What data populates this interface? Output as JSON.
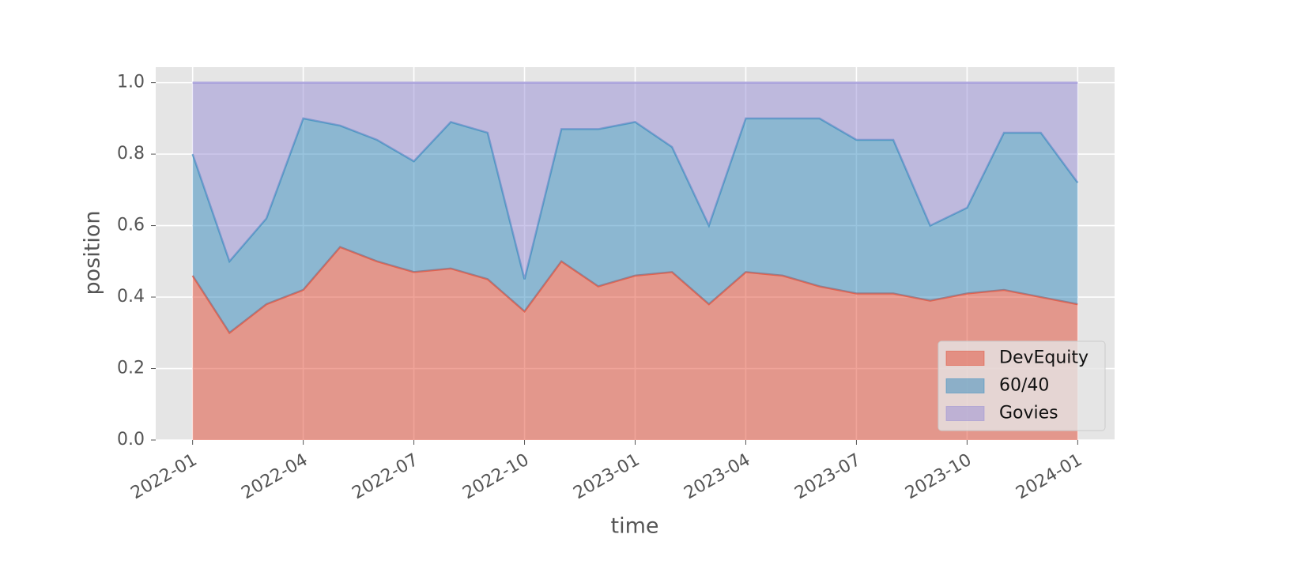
{
  "chart_data": {
    "type": "stacked_area",
    "x_label": "time",
    "y_label": "position",
    "x": [
      "2022-01",
      "2022-02",
      "2022-03",
      "2022-04",
      "2022-05",
      "2022-06",
      "2022-07",
      "2022-08",
      "2022-09",
      "2022-10",
      "2022-11",
      "2022-12",
      "2023-01",
      "2023-02",
      "2023-03",
      "2023-04",
      "2023-05",
      "2023-06",
      "2023-07",
      "2023-08",
      "2023-09",
      "2023-10",
      "2023-11",
      "2023-12",
      "2024-01"
    ],
    "series": [
      {
        "name": "DevEquity",
        "color": "#e24a33",
        "values": [
          0.46,
          0.3,
          0.38,
          0.42,
          0.54,
          0.5,
          0.47,
          0.48,
          0.45,
          0.36,
          0.5,
          0.43,
          0.46,
          0.47,
          0.38,
          0.47,
          0.46,
          0.43,
          0.41,
          0.41,
          0.39,
          0.41,
          0.42,
          0.4,
          0.38
        ]
      },
      {
        "name": "60/40",
        "color": "#348abd",
        "values": [
          0.34,
          0.2,
          0.24,
          0.48,
          0.34,
          0.34,
          0.31,
          0.41,
          0.41,
          0.09,
          0.37,
          0.44,
          0.43,
          0.35,
          0.22,
          0.43,
          0.44,
          0.47,
          0.43,
          0.43,
          0.21,
          0.24,
          0.44,
          0.46,
          0.34
        ]
      },
      {
        "name": "Govies",
        "color": "#988ed5",
        "values": [
          0.2,
          0.5,
          0.38,
          0.1,
          0.12,
          0.16,
          0.22,
          0.11,
          0.14,
          0.55,
          0.13,
          0.13,
          0.11,
          0.18,
          0.4,
          0.1,
          0.1,
          0.1,
          0.16,
          0.16,
          0.4,
          0.35,
          0.14,
          0.14,
          0.28
        ]
      }
    ],
    "xlim": [
      "2021-12",
      "2024-02"
    ],
    "xticks": [
      "2022-01",
      "2022-04",
      "2022-07",
      "2022-10",
      "2023-01",
      "2023-04",
      "2023-07",
      "2023-10",
      "2024-01"
    ],
    "ylim": [
      0,
      1.05
    ],
    "yticks": [
      {
        "value": 0,
        "label": "0.0"
      },
      0.2,
      0.4,
      0.6,
      0.8,
      {
        "value": 1,
        "label": "1.0"
      }
    ],
    "grid": true,
    "legend": "lower right"
  }
}
